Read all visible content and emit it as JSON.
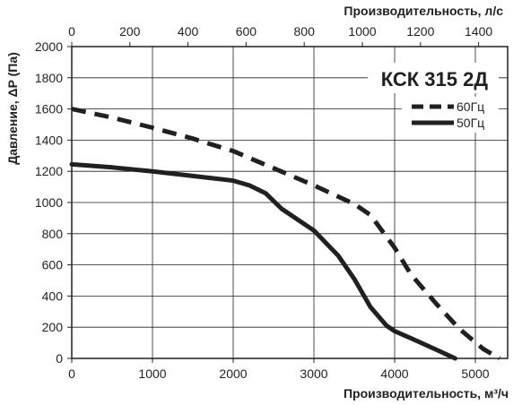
{
  "chart_data": {
    "type": "line",
    "title": "КСК 315 2Д",
    "xlabel": "Производительность, м³/ч",
    "x2label": "Производительность, л/с",
    "ylabel": "Давление, ΔP (Па)",
    "xlim": [
      0,
      5400
    ],
    "ylim": [
      0,
      2000
    ],
    "x_ticks": [
      0,
      1000,
      2000,
      3000,
      4000,
      5000
    ],
    "x_tick_labels": [
      "0",
      "1000",
      "2000",
      "3000",
      "4000",
      "5000"
    ],
    "y_ticks": [
      0,
      200,
      400,
      600,
      800,
      1000,
      1200,
      1400,
      1600,
      1800,
      2000
    ],
    "y_tick_labels": [
      "0",
      "200",
      "400",
      "600",
      "800",
      "1000",
      "1200",
      "1400",
      "1600",
      "1800",
      "2000"
    ],
    "x2_ticks": [
      0,
      200,
      400,
      600,
      800,
      1000,
      1200,
      1400
    ],
    "x2_tick_labels": [
      "0",
      "200",
      "400",
      "600",
      "800",
      "1000",
      "1200",
      "1400"
    ],
    "x2_factor": 3.6,
    "grid": true,
    "legend_position": "top-right",
    "series": [
      {
        "name": "60Гц",
        "style": "dashed",
        "color": "#231f20",
        "x": [
          0,
          500,
          1000,
          1500,
          2000,
          2500,
          3000,
          3500,
          3700,
          4000,
          4200,
          4500,
          4800,
          5100,
          5300
        ],
        "y": [
          1600,
          1545,
          1480,
          1410,
          1330,
          1220,
          1110,
          990,
          920,
          710,
          540,
          360,
          190,
          60,
          0
        ]
      },
      {
        "name": "50Гц",
        "style": "solid",
        "color": "#231f20",
        "x": [
          0,
          500,
          1000,
          1500,
          2000,
          2200,
          2400,
          2600,
          3000,
          3300,
          3500,
          3700,
          3900,
          4000,
          4200,
          4500,
          4750
        ],
        "y": [
          1245,
          1225,
          1200,
          1170,
          1140,
          1110,
          1060,
          960,
          820,
          660,
          510,
          330,
          210,
          175,
          130,
          60,
          0
        ]
      }
    ]
  }
}
